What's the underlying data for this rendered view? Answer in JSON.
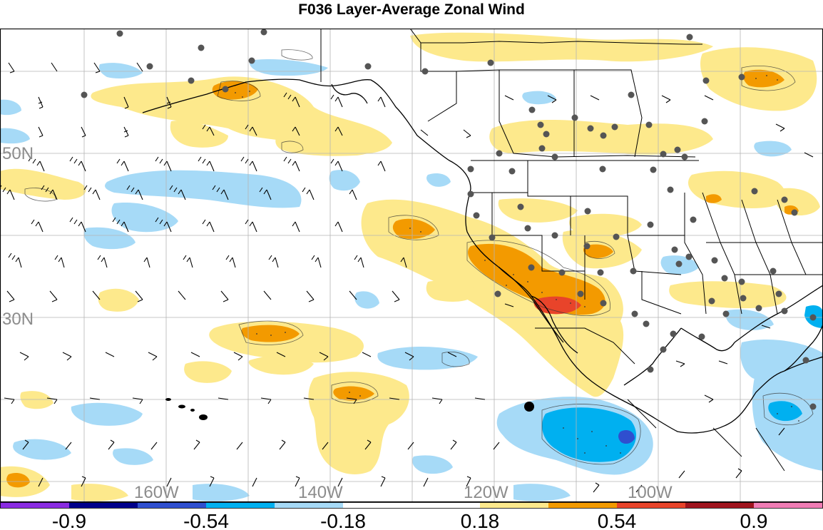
{
  "title": "F036 Layer-Average Zonal Wind",
  "map": {
    "lat_labels": [
      "50N",
      "30N"
    ],
    "lon_labels": [
      "160W",
      "140W",
      "120W",
      "100W"
    ],
    "label_color": "#8c8c8c",
    "grid_color": "#b4b4b4"
  },
  "colorbar": {
    "colors": [
      "#8a2be2",
      "#00008b",
      "#2f4fcf",
      "#00b0f0",
      "#a6daf7",
      "#ffffff",
      "#fde98c",
      "#f39a00",
      "#e8442a",
      "#a0141e",
      "#f07cb4"
    ],
    "tick_labels": [
      "-0.9",
      "-0.54",
      "-0.18",
      "0.18",
      "0.54",
      "0.9"
    ]
  }
}
